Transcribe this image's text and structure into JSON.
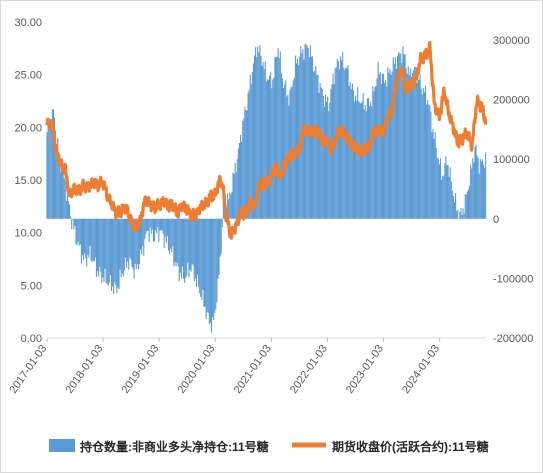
{
  "chart_data": {
    "type": "bar+line",
    "x_ticks": [
      "2017-01-03",
      "2018-01-03",
      "2019-01-03",
      "2020-01-03",
      "2021-01-03",
      "2022-01-03",
      "2023-01-03",
      "2024-01-03"
    ],
    "x_range": [
      "2017-01-03",
      "2024-10-31"
    ],
    "left_axis": {
      "ticks": [
        "0.00",
        "5.00",
        "10.00",
        "15.00",
        "20.00",
        "25.00",
        "30.00"
      ],
      "ylim": [
        0,
        30
      ]
    },
    "right_axis": {
      "ticks": [
        "-200000",
        "-100000",
        "0",
        "100000",
        "200000",
        "300000"
      ],
      "ylim": [
        -200000,
        330000
      ]
    },
    "series": [
      {
        "name": "持仓数量:非商业多头净持仓:11号糖",
        "type": "bar",
        "axis": "right",
        "color": "#5b9bd5",
        "points": [
          [
            "2017-01-03",
            145000
          ],
          [
            "2017-02-15",
            180000
          ],
          [
            "2017-03-20",
            110000
          ],
          [
            "2017-05-01",
            60000
          ],
          [
            "2017-06-10",
            0
          ],
          [
            "2017-07-20",
            -40000
          ],
          [
            "2017-09-01",
            -70000
          ],
          [
            "2017-10-15",
            -60000
          ],
          [
            "2017-12-01",
            -90000
          ],
          [
            "2018-01-10",
            -100000
          ],
          [
            "2018-02-20",
            -110000
          ],
          [
            "2018-04-01",
            -120000
          ],
          [
            "2018-05-10",
            -90000
          ],
          [
            "2018-06-20",
            -70000
          ],
          [
            "2018-08-01",
            -90000
          ],
          [
            "2018-09-10",
            -60000
          ],
          [
            "2018-10-20",
            -20000
          ],
          [
            "2018-12-01",
            -30000
          ],
          [
            "2019-01-10",
            -20000
          ],
          [
            "2019-02-20",
            -40000
          ],
          [
            "2019-04-01",
            -60000
          ],
          [
            "2019-05-10",
            -90000
          ],
          [
            "2019-06-20",
            -100000
          ],
          [
            "2019-08-01",
            -80000
          ],
          [
            "2019-09-10",
            -110000
          ],
          [
            "2019-10-20",
            -140000
          ],
          [
            "2019-11-20",
            -170000
          ],
          [
            "2019-12-20",
            -180000
          ],
          [
            "2020-01-20",
            -120000
          ],
          [
            "2020-02-15",
            -30000
          ],
          [
            "2020-03-01",
            40000
          ],
          [
            "2020-04-01",
            30000
          ],
          [
            "2020-05-01",
            70000
          ],
          [
            "2020-06-01",
            110000
          ],
          [
            "2020-07-01",
            160000
          ],
          [
            "2020-08-01",
            200000
          ],
          [
            "2020-09-01",
            250000
          ],
          [
            "2020-10-01",
            290000
          ],
          [
            "2020-11-01",
            270000
          ],
          [
            "2020-12-01",
            240000
          ],
          [
            "2021-01-10",
            230000
          ],
          [
            "2021-02-15",
            290000
          ],
          [
            "2021-03-20",
            230000
          ],
          [
            "2021-05-01",
            200000
          ],
          [
            "2021-06-10",
            260000
          ],
          [
            "2021-07-20",
            280000
          ],
          [
            "2021-09-01",
            290000
          ],
          [
            "2021-10-15",
            250000
          ],
          [
            "2021-12-01",
            210000
          ],
          [
            "2022-01-10",
            190000
          ],
          [
            "2022-02-20",
            250000
          ],
          [
            "2022-04-01",
            270000
          ],
          [
            "2022-05-10",
            250000
          ],
          [
            "2022-06-20",
            210000
          ],
          [
            "2022-08-01",
            200000
          ],
          [
            "2022-09-10",
            190000
          ],
          [
            "2022-10-20",
            200000
          ],
          [
            "2022-12-01",
            250000
          ],
          [
            "2023-01-10",
            230000
          ],
          [
            "2023-02-20",
            250000
          ],
          [
            "2023-04-01",
            270000
          ],
          [
            "2023-05-10",
            280000
          ],
          [
            "2023-06-20",
            240000
          ],
          [
            "2023-08-01",
            250000
          ],
          [
            "2023-09-10",
            220000
          ],
          [
            "2023-10-20",
            200000
          ],
          [
            "2023-11-20",
            150000
          ],
          [
            "2023-12-20",
            110000
          ],
          [
            "2024-01-20",
            70000
          ],
          [
            "2024-02-20",
            100000
          ],
          [
            "2024-03-20",
            60000
          ],
          [
            "2024-04-20",
            20000
          ],
          [
            "2024-05-20",
            5000
          ],
          [
            "2024-06-20",
            30000
          ],
          [
            "2024-07-20",
            70000
          ],
          [
            "2024-08-20",
            120000
          ],
          [
            "2024-09-20",
            90000
          ],
          [
            "2024-10-31",
            100000
          ]
        ]
      },
      {
        "name": "期货收盘价(活跃合约):11号糖",
        "type": "line",
        "axis": "left",
        "color": "#ed7d31",
        "points": [
          [
            "2017-01-03",
            20.2
          ],
          [
            "2017-02-01",
            20.5
          ],
          [
            "2017-03-01",
            18.0
          ],
          [
            "2017-04-01",
            16.5
          ],
          [
            "2017-05-01",
            16.0
          ],
          [
            "2017-06-01",
            13.5
          ],
          [
            "2017-07-01",
            14.2
          ],
          [
            "2017-08-01",
            14.0
          ],
          [
            "2017-09-01",
            14.5
          ],
          [
            "2017-10-01",
            14.3
          ],
          [
            "2017-11-01",
            14.8
          ],
          [
            "2017-12-01",
            14.5
          ],
          [
            "2018-01-03",
            14.8
          ],
          [
            "2018-02-01",
            13.5
          ],
          [
            "2018-03-01",
            12.7
          ],
          [
            "2018-04-01",
            11.8
          ],
          [
            "2018-05-01",
            12.0
          ],
          [
            "2018-06-01",
            12.5
          ],
          [
            "2018-07-01",
            11.2
          ],
          [
            "2018-08-01",
            10.5
          ],
          [
            "2018-09-01",
            11.0
          ],
          [
            "2018-10-01",
            13.0
          ],
          [
            "2018-11-01",
            12.8
          ],
          [
            "2018-12-01",
            12.4
          ],
          [
            "2019-01-03",
            12.6
          ],
          [
            "2019-02-01",
            13.0
          ],
          [
            "2019-03-01",
            12.5
          ],
          [
            "2019-04-01",
            12.7
          ],
          [
            "2019-05-01",
            11.8
          ],
          [
            "2019-06-01",
            12.6
          ],
          [
            "2019-07-01",
            12.2
          ],
          [
            "2019-08-01",
            11.7
          ],
          [
            "2019-09-01",
            11.6
          ],
          [
            "2019-10-01",
            12.5
          ],
          [
            "2019-11-01",
            12.7
          ],
          [
            "2019-12-01",
            13.4
          ],
          [
            "2020-01-03",
            13.6
          ],
          [
            "2020-02-01",
            15.0
          ],
          [
            "2020-02-20",
            14.5
          ],
          [
            "2020-03-15",
            11.5
          ],
          [
            "2020-04-15",
            9.7
          ],
          [
            "2020-05-15",
            10.5
          ],
          [
            "2020-06-15",
            11.8
          ],
          [
            "2020-07-15",
            11.8
          ],
          [
            "2020-08-15",
            12.8
          ],
          [
            "2020-09-15",
            12.5
          ],
          [
            "2020-10-15",
            14.3
          ],
          [
            "2020-11-15",
            14.8
          ],
          [
            "2020-12-15",
            14.7
          ],
          [
            "2021-01-03",
            15.5
          ],
          [
            "2021-02-01",
            16.3
          ],
          [
            "2021-03-01",
            15.2
          ],
          [
            "2021-04-01",
            16.5
          ],
          [
            "2021-05-01",
            17.2
          ],
          [
            "2021-06-01",
            17.5
          ],
          [
            "2021-07-01",
            17.8
          ],
          [
            "2021-08-01",
            19.8
          ],
          [
            "2021-09-01",
            19.6
          ],
          [
            "2021-10-01",
            19.6
          ],
          [
            "2021-11-01",
            19.6
          ],
          [
            "2021-12-01",
            18.8
          ],
          [
            "2022-01-03",
            18.6
          ],
          [
            "2022-02-01",
            17.8
          ],
          [
            "2022-03-01",
            19.1
          ],
          [
            "2022-04-01",
            19.8
          ],
          [
            "2022-05-01",
            19.2
          ],
          [
            "2022-06-01",
            18.6
          ],
          [
            "2022-07-01",
            18.0
          ],
          [
            "2022-08-01",
            17.8
          ],
          [
            "2022-09-01",
            17.8
          ],
          [
            "2022-10-01",
            18.2
          ],
          [
            "2022-11-01",
            19.5
          ],
          [
            "2022-12-01",
            19.8
          ],
          [
            "2023-01-03",
            19.5
          ],
          [
            "2023-02-01",
            21.0
          ],
          [
            "2023-03-01",
            21.5
          ],
          [
            "2023-04-01",
            24.5
          ],
          [
            "2023-05-01",
            25.5
          ],
          [
            "2023-06-01",
            23.5
          ],
          [
            "2023-07-01",
            24.0
          ],
          [
            "2023-08-01",
            24.5
          ],
          [
            "2023-09-01",
            26.5
          ],
          [
            "2023-10-01",
            26.8
          ],
          [
            "2023-11-01",
            27.5
          ],
          [
            "2023-12-01",
            22.0
          ],
          [
            "2024-01-03",
            21.0
          ],
          [
            "2024-02-01",
            23.5
          ],
          [
            "2024-03-01",
            21.5
          ],
          [
            "2024-04-01",
            20.0
          ],
          [
            "2024-05-01",
            18.5
          ],
          [
            "2024-06-01",
            19.0
          ],
          [
            "2024-07-01",
            19.5
          ],
          [
            "2024-08-01",
            18.2
          ],
          [
            "2024-09-01",
            22.5
          ],
          [
            "2024-10-01",
            22.0
          ],
          [
            "2024-10-31",
            20.5
          ]
        ]
      }
    ],
    "legend_position": "bottom"
  },
  "legend": {
    "bar_label": "持仓数量:非商业多头净持仓:11号糖",
    "line_label": "期货收盘价(活跃合约):11号糖",
    "bar_color": "#5b9bd5",
    "line_color": "#ed7d31"
  }
}
